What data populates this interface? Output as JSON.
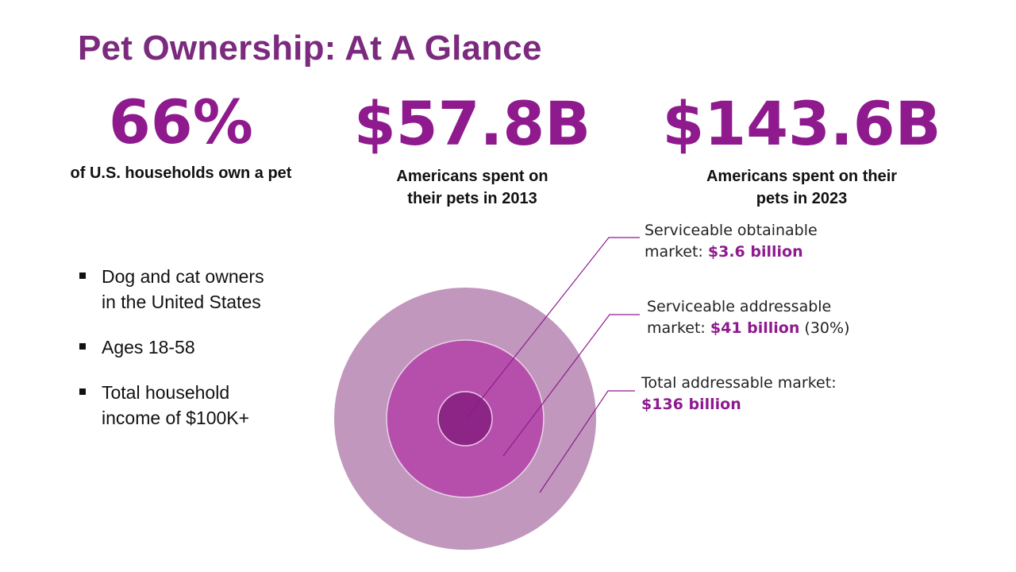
{
  "title": "Pet Ownership: At A Glance",
  "stats": [
    {
      "value": "66%",
      "caption": [
        "of U.S. households own a pet"
      ]
    },
    {
      "value": "$57.8B",
      "caption": [
        "Americans spent on",
        "their pets in 2013"
      ]
    },
    {
      "value": "$143.6B",
      "caption": [
        "Americans spent on their",
        "pets in 2023"
      ]
    }
  ],
  "bullets": [
    [
      "Dog and cat owners",
      "in the United States"
    ],
    [
      "Ages 18-58"
    ],
    [
      "Total household",
      "income of $100K+"
    ]
  ],
  "market": {
    "rings": [
      {
        "name": "Total addressable market",
        "label_lines": [
          "Total addressable market:"
        ],
        "value": "$136 billion",
        "suffix": "",
        "color": "#c197bd"
      },
      {
        "name": "Serviceable addressable market",
        "label_lines": [
          "Serviceable addressable",
          "market: "
        ],
        "value": "$41 billion",
        "suffix": " (30%)",
        "color": "#b64fac"
      },
      {
        "name": "Serviceable obtainable market",
        "label_lines": [
          "Serviceable obtainable",
          "market: "
        ],
        "value": "$3.6 billion",
        "suffix": "",
        "color": "#8c2585"
      }
    ],
    "value_color": "#8e1a8e",
    "line_color": "#8e1a8e"
  }
}
